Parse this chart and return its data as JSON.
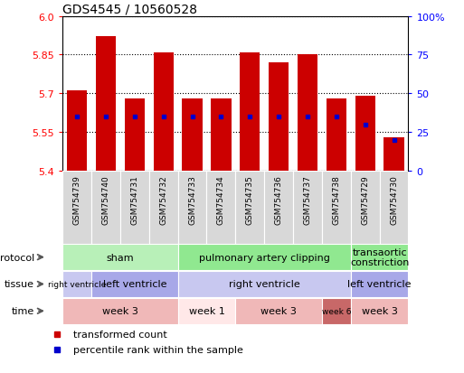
{
  "title": "GDS4545 / 10560528",
  "samples": [
    "GSM754739",
    "GSM754740",
    "GSM754731",
    "GSM754732",
    "GSM754733",
    "GSM754734",
    "GSM754735",
    "GSM754736",
    "GSM754737",
    "GSM754738",
    "GSM754729",
    "GSM754730"
  ],
  "bar_values": [
    5.71,
    5.92,
    5.68,
    5.86,
    5.68,
    5.68,
    5.86,
    5.82,
    5.85,
    5.68,
    5.69,
    5.53
  ],
  "bar_base": 5.4,
  "percentile_values": [
    35,
    35,
    35,
    35,
    35,
    35,
    35,
    35,
    35,
    35,
    30,
    20
  ],
  "ylim": [
    5.4,
    6.0
  ],
  "yticks_left": [
    5.4,
    5.55,
    5.7,
    5.85,
    6.0
  ],
  "yticks_right": [
    0,
    25,
    50,
    75,
    100
  ],
  "bar_color": "#cc0000",
  "percentile_color": "#0000cc",
  "protocol_groups": [
    {
      "label": "sham",
      "start": 0,
      "end": 4,
      "color": "#b8f0b8"
    },
    {
      "label": "pulmonary artery clipping",
      "start": 4,
      "end": 10,
      "color": "#90e890"
    },
    {
      "label": "transaortic\nconstriction",
      "start": 10,
      "end": 12,
      "color": "#90e890"
    }
  ],
  "tissue_groups": [
    {
      "label": "right ventricle",
      "start": 0,
      "end": 1,
      "color": "#c8c8f0"
    },
    {
      "label": "left ventricle",
      "start": 1,
      "end": 4,
      "color": "#a8a8e8"
    },
    {
      "label": "right ventricle",
      "start": 4,
      "end": 10,
      "color": "#c8c8f0"
    },
    {
      "label": "left ventricle",
      "start": 10,
      "end": 12,
      "color": "#a8a8e8"
    }
  ],
  "time_groups": [
    {
      "label": "week 3",
      "start": 0,
      "end": 4,
      "color": "#f0b8b8"
    },
    {
      "label": "week 1",
      "start": 4,
      "end": 6,
      "color": "#ffe8e8"
    },
    {
      "label": "week 3",
      "start": 6,
      "end": 9,
      "color": "#f0b8b8"
    },
    {
      "label": "week 6",
      "start": 9,
      "end": 10,
      "color": "#c86868"
    },
    {
      "label": "week 3",
      "start": 10,
      "end": 12,
      "color": "#f0b8b8"
    }
  ],
  "background_color": "#ffffff",
  "tick_bg_color": "#d8d8d8"
}
